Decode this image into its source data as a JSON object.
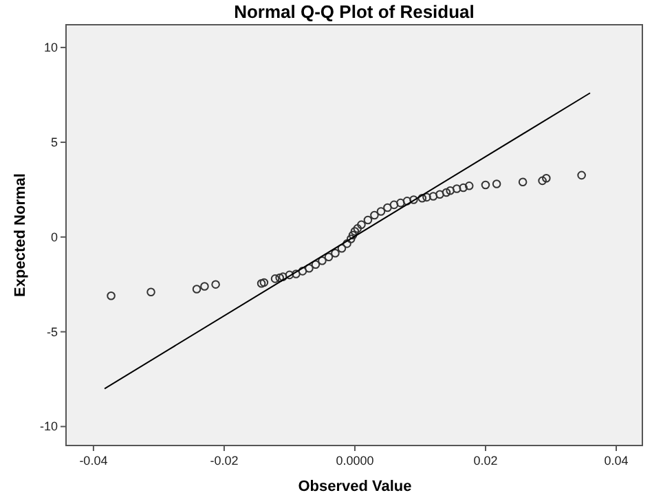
{
  "chart_data": {
    "type": "scatter",
    "title": "Normal Q-Q Plot of Residual",
    "xlabel": "Observed Value",
    "ylabel": "Expected Normal",
    "xlim": [
      -0.0442,
      0.044
    ],
    "ylim": [
      -11,
      11.2
    ],
    "xticks": [
      -0.04,
      -0.02,
      {
        "value": 0,
        "label": "0.0000"
      },
      0.02,
      0.04
    ],
    "yticks": [
      -10,
      -5,
      0,
      5,
      10
    ],
    "grid": false,
    "series": [
      {
        "marker": "circle",
        "color": "#333333",
        "x": [
          -0.0373,
          -0.0312,
          -0.0242,
          -0.023,
          -0.0213,
          -0.0143,
          -0.0139,
          -0.0122,
          -0.0115,
          -0.011,
          -0.01,
          -0.009,
          -0.008,
          -0.007,
          -0.006,
          -0.005,
          -0.004,
          -0.003,
          -0.002,
          -0.0012,
          -0.0006,
          -0.0003,
          0,
          0.0004,
          0.001,
          0.002,
          0.003,
          0.004,
          0.005,
          0.006,
          0.007,
          0.008,
          0.009,
          0.0103,
          0.011,
          0.012,
          0.013,
          0.014,
          0.0146,
          0.0156,
          0.0166,
          0.0175,
          0.02,
          0.0217,
          0.0257,
          0.0287,
          0.0293,
          0.0347
        ],
        "values": [
          -3.1,
          -2.9,
          -2.75,
          -2.6,
          -2.5,
          -2.45,
          -2.4,
          -2.2,
          -2.15,
          -2.1,
          -2.0,
          -1.95,
          -1.8,
          -1.65,
          -1.45,
          -1.25,
          -1.05,
          -0.85,
          -0.6,
          -0.35,
          -0.1,
          0.1,
          0.3,
          0.45,
          0.65,
          0.9,
          1.15,
          1.35,
          1.55,
          1.7,
          1.8,
          1.9,
          1.97,
          2.05,
          2.1,
          2.15,
          2.25,
          2.35,
          2.45,
          2.55,
          2.6,
          2.7,
          2.75,
          2.8,
          2.9,
          2.97,
          3.1,
          3.26
        ]
      },
      {
        "type": "line",
        "color": "#000000",
        "x": [
          -0.0383,
          0.036
        ],
        "values": [
          -8.0,
          7.6
        ]
      }
    ]
  }
}
